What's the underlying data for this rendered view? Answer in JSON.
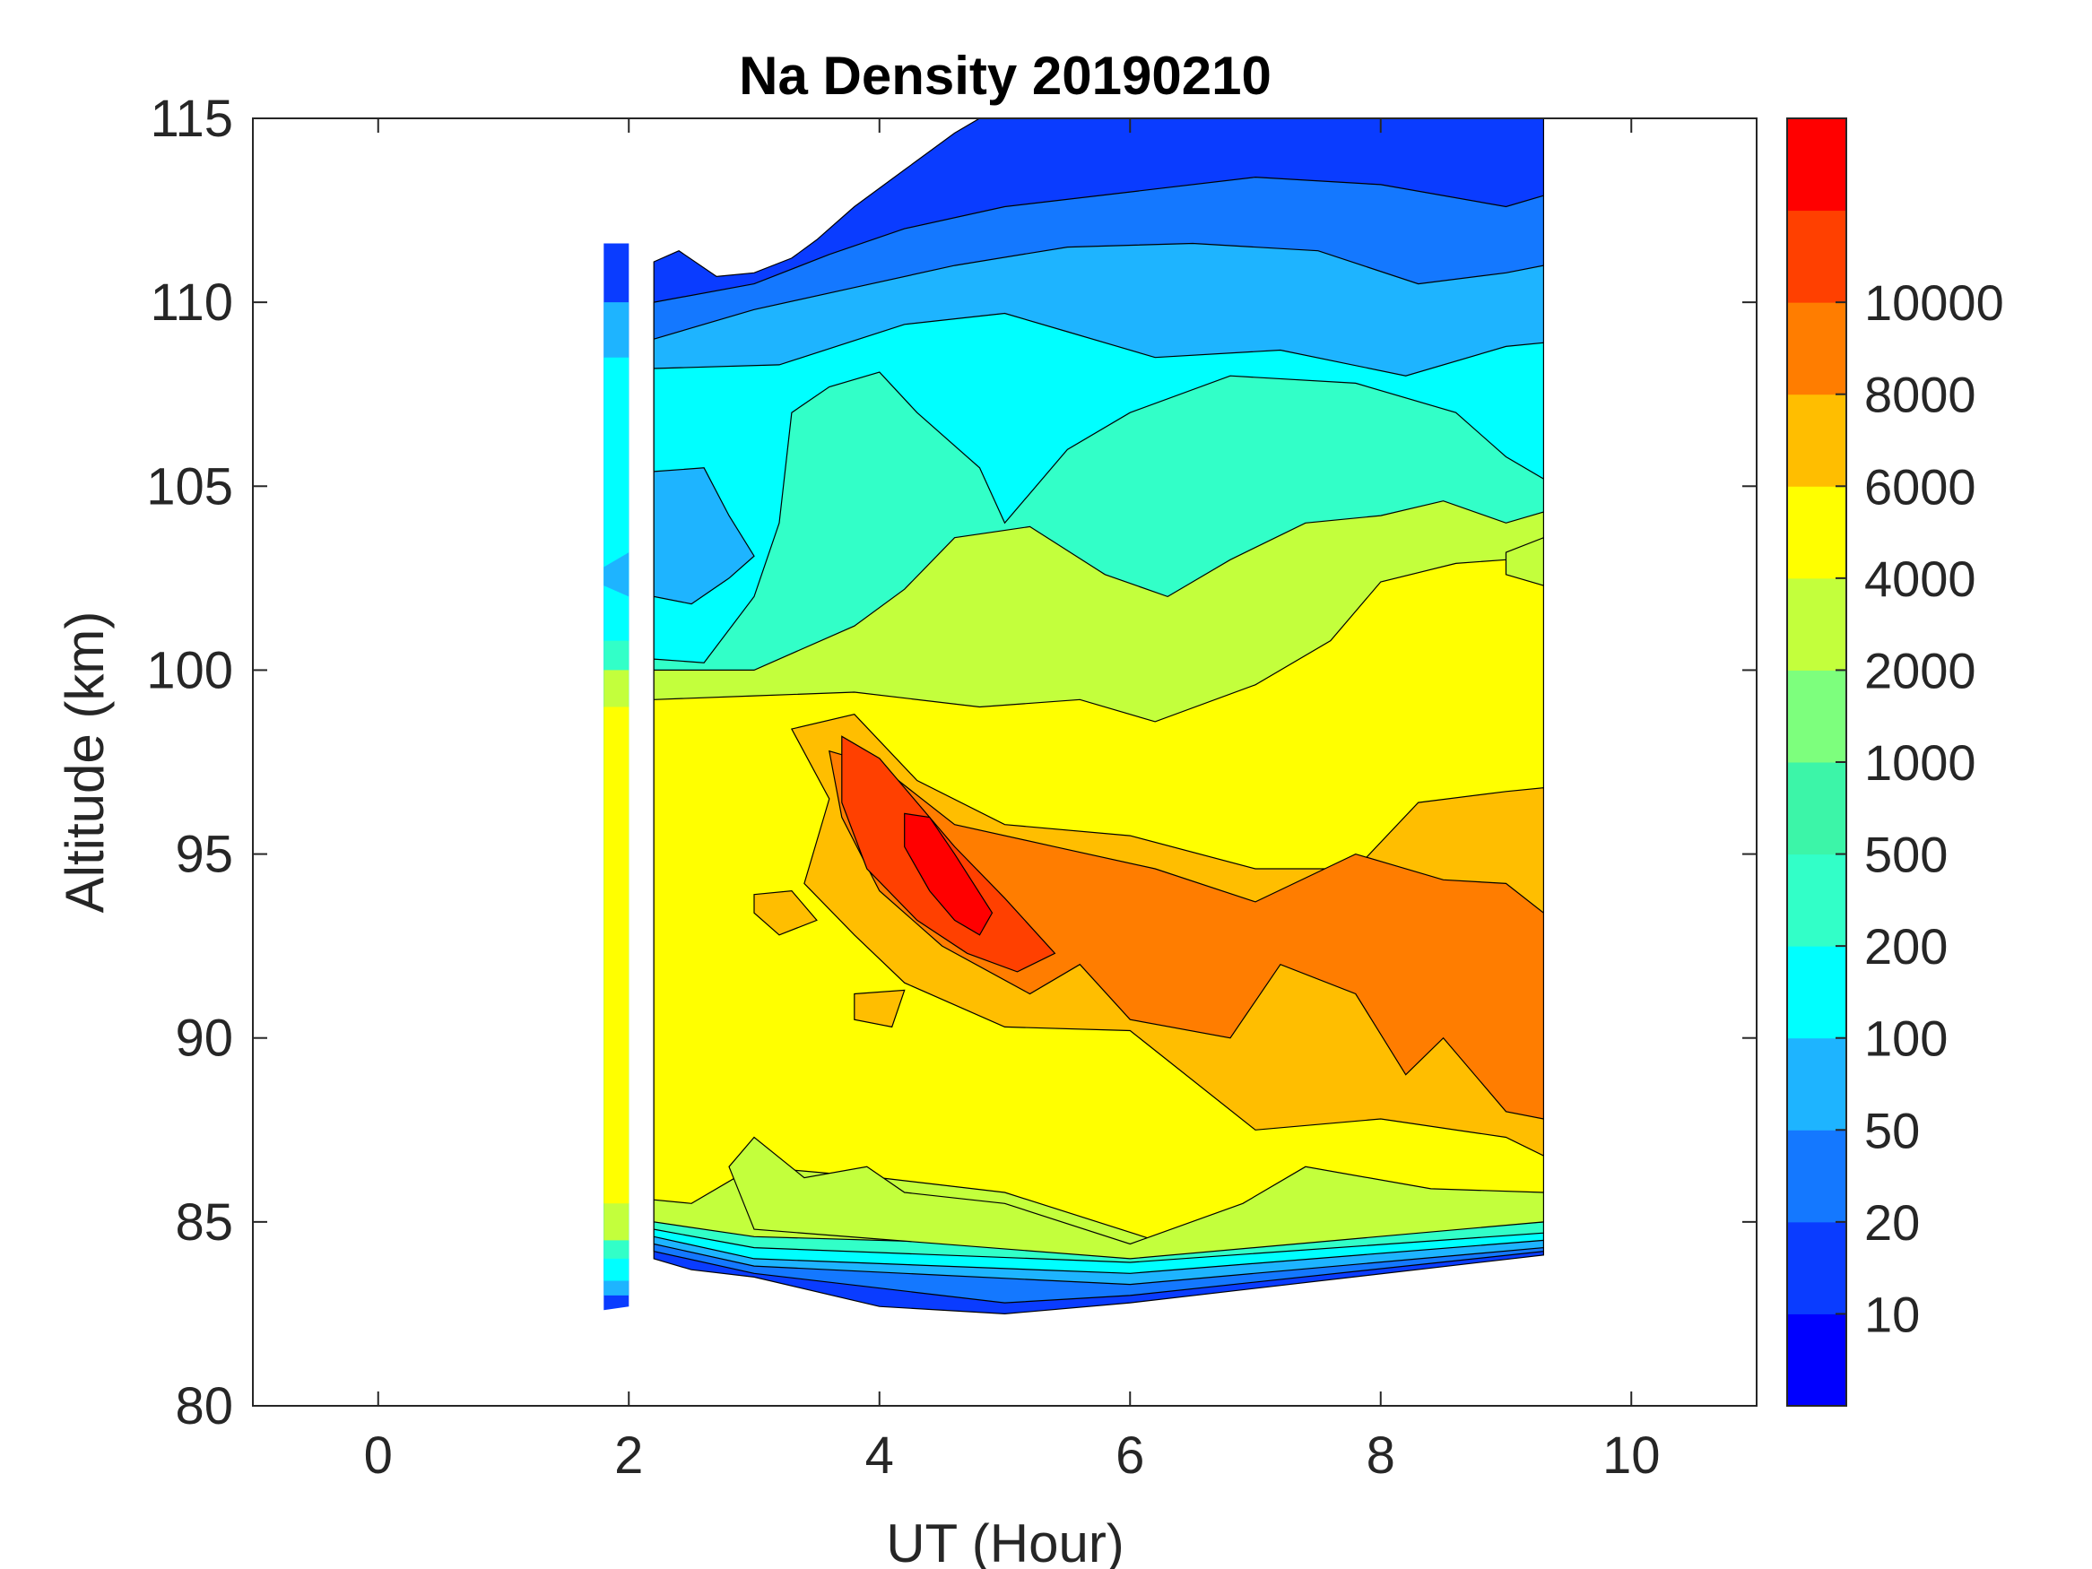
{
  "chart_data": {
    "type": "heatmap",
    "title": "Na Density 20190210",
    "xlabel": "UT (Hour)",
    "ylabel": "Altitude (km)",
    "xlim": [
      -1,
      11
    ],
    "ylim": [
      80,
      115
    ],
    "xticks": [
      "0",
      "2",
      "4",
      "6",
      "8",
      "10"
    ],
    "yticks": [
      "80",
      "85",
      "90",
      "95",
      "100",
      "105",
      "110",
      "115"
    ],
    "colorbar": {
      "levels": [
        0,
        10,
        20,
        50,
        100,
        200,
        500,
        1000,
        2000,
        4000,
        6000,
        8000,
        10000,
        12000
      ],
      "tick_labels": [
        "10",
        "20",
        "50",
        "100",
        "200",
        "500",
        "1000",
        "2000",
        "4000",
        "6000",
        "8000",
        "10000"
      ],
      "colors": [
        "#0000ff",
        "#0a3cff",
        "#1478ff",
        "#1eb4ff",
        "#00ffff",
        "#32ffc8",
        "#3cf5a8",
        "#7dff7d",
        "#c3ff3c",
        "#ffff00",
        "#ffbe00",
        "#ff7d00",
        "#ff4000",
        "#ff0000"
      ]
    },
    "data_coverage": {
      "segments_ut": [
        [
          1.8,
          2.0
        ],
        [
          2.2,
          9.3
        ]
      ],
      "bottom_altitude_km": 81.5,
      "top_altitude_km": 115
    },
    "layers": [
      {
        "level": "10",
        "ut_range": [
          2.2,
          9.3
        ],
        "alt_center": 111.5,
        "note": "topside"
      },
      {
        "level": "100",
        "ut_range": [
          2.2,
          9.3
        ],
        "alt_center": 106
      },
      {
        "level": "200",
        "ut_range": [
          2.2,
          9.3
        ],
        "alt_center": 104.5
      },
      {
        "level": "1000",
        "ut_range": [
          2.2,
          9.3
        ],
        "alt_center": 100.5
      },
      {
        "level": "2000",
        "ut_range": [
          2.2,
          9.3
        ],
        "alt_center": 92
      },
      {
        "level": "4000",
        "ut_range": [
          3.5,
          9.3
        ],
        "alt_center": 92.5
      },
      {
        "level": "6000",
        "ut_range": [
          4.5,
          9.3
        ],
        "alt_center": 91.5
      },
      {
        "level": "8000",
        "ut_range": [
          3.6,
          5.1
        ],
        "alt_center": 95.5
      },
      {
        "level": "10000",
        "ut_range": [
          4.2,
          4.9
        ],
        "alt_center": 94.5
      }
    ]
  }
}
